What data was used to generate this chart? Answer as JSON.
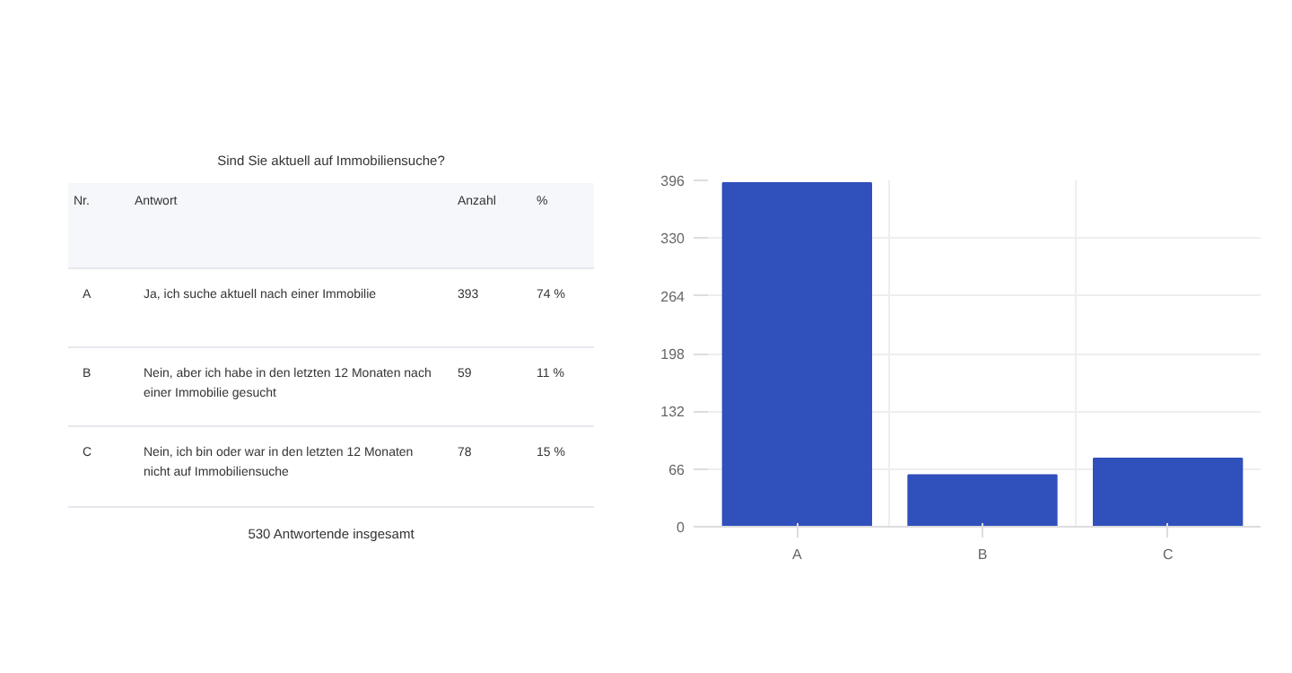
{
  "chart_data": [
    {
      "type": "other",
      "title": "Sind Sie aktuell auf Immobiliensuche?",
      "annotations": [
        "Nr.",
        "Antwort",
        "Anzahl",
        "%",
        "A",
        "Ja, ich suche aktuell nach einer Immobilie",
        "393",
        "74 %",
        "B",
        "Nein, aber ich habe in den letzten 12 Monaten nach\neiner Immobilie gesucht",
        "59",
        "11 %",
        "C",
        "Nein, ich bin oder war in den letzten 12 Monaten\nnicht auf Immobiliensuche",
        "78",
        "15 %",
        "530 Antwortende insgesamt"
      ]
    },
    {
      "type": "bar",
      "categories": [
        "A",
        "B",
        "C"
      ],
      "values": [
        393,
        59,
        78
      ],
      "color": "#3050bc",
      "ylim": [
        0,
        396
      ],
      "yticks": [
        0,
        66,
        132,
        198,
        264,
        330,
        396
      ],
      "grid": true
    }
  ]
}
